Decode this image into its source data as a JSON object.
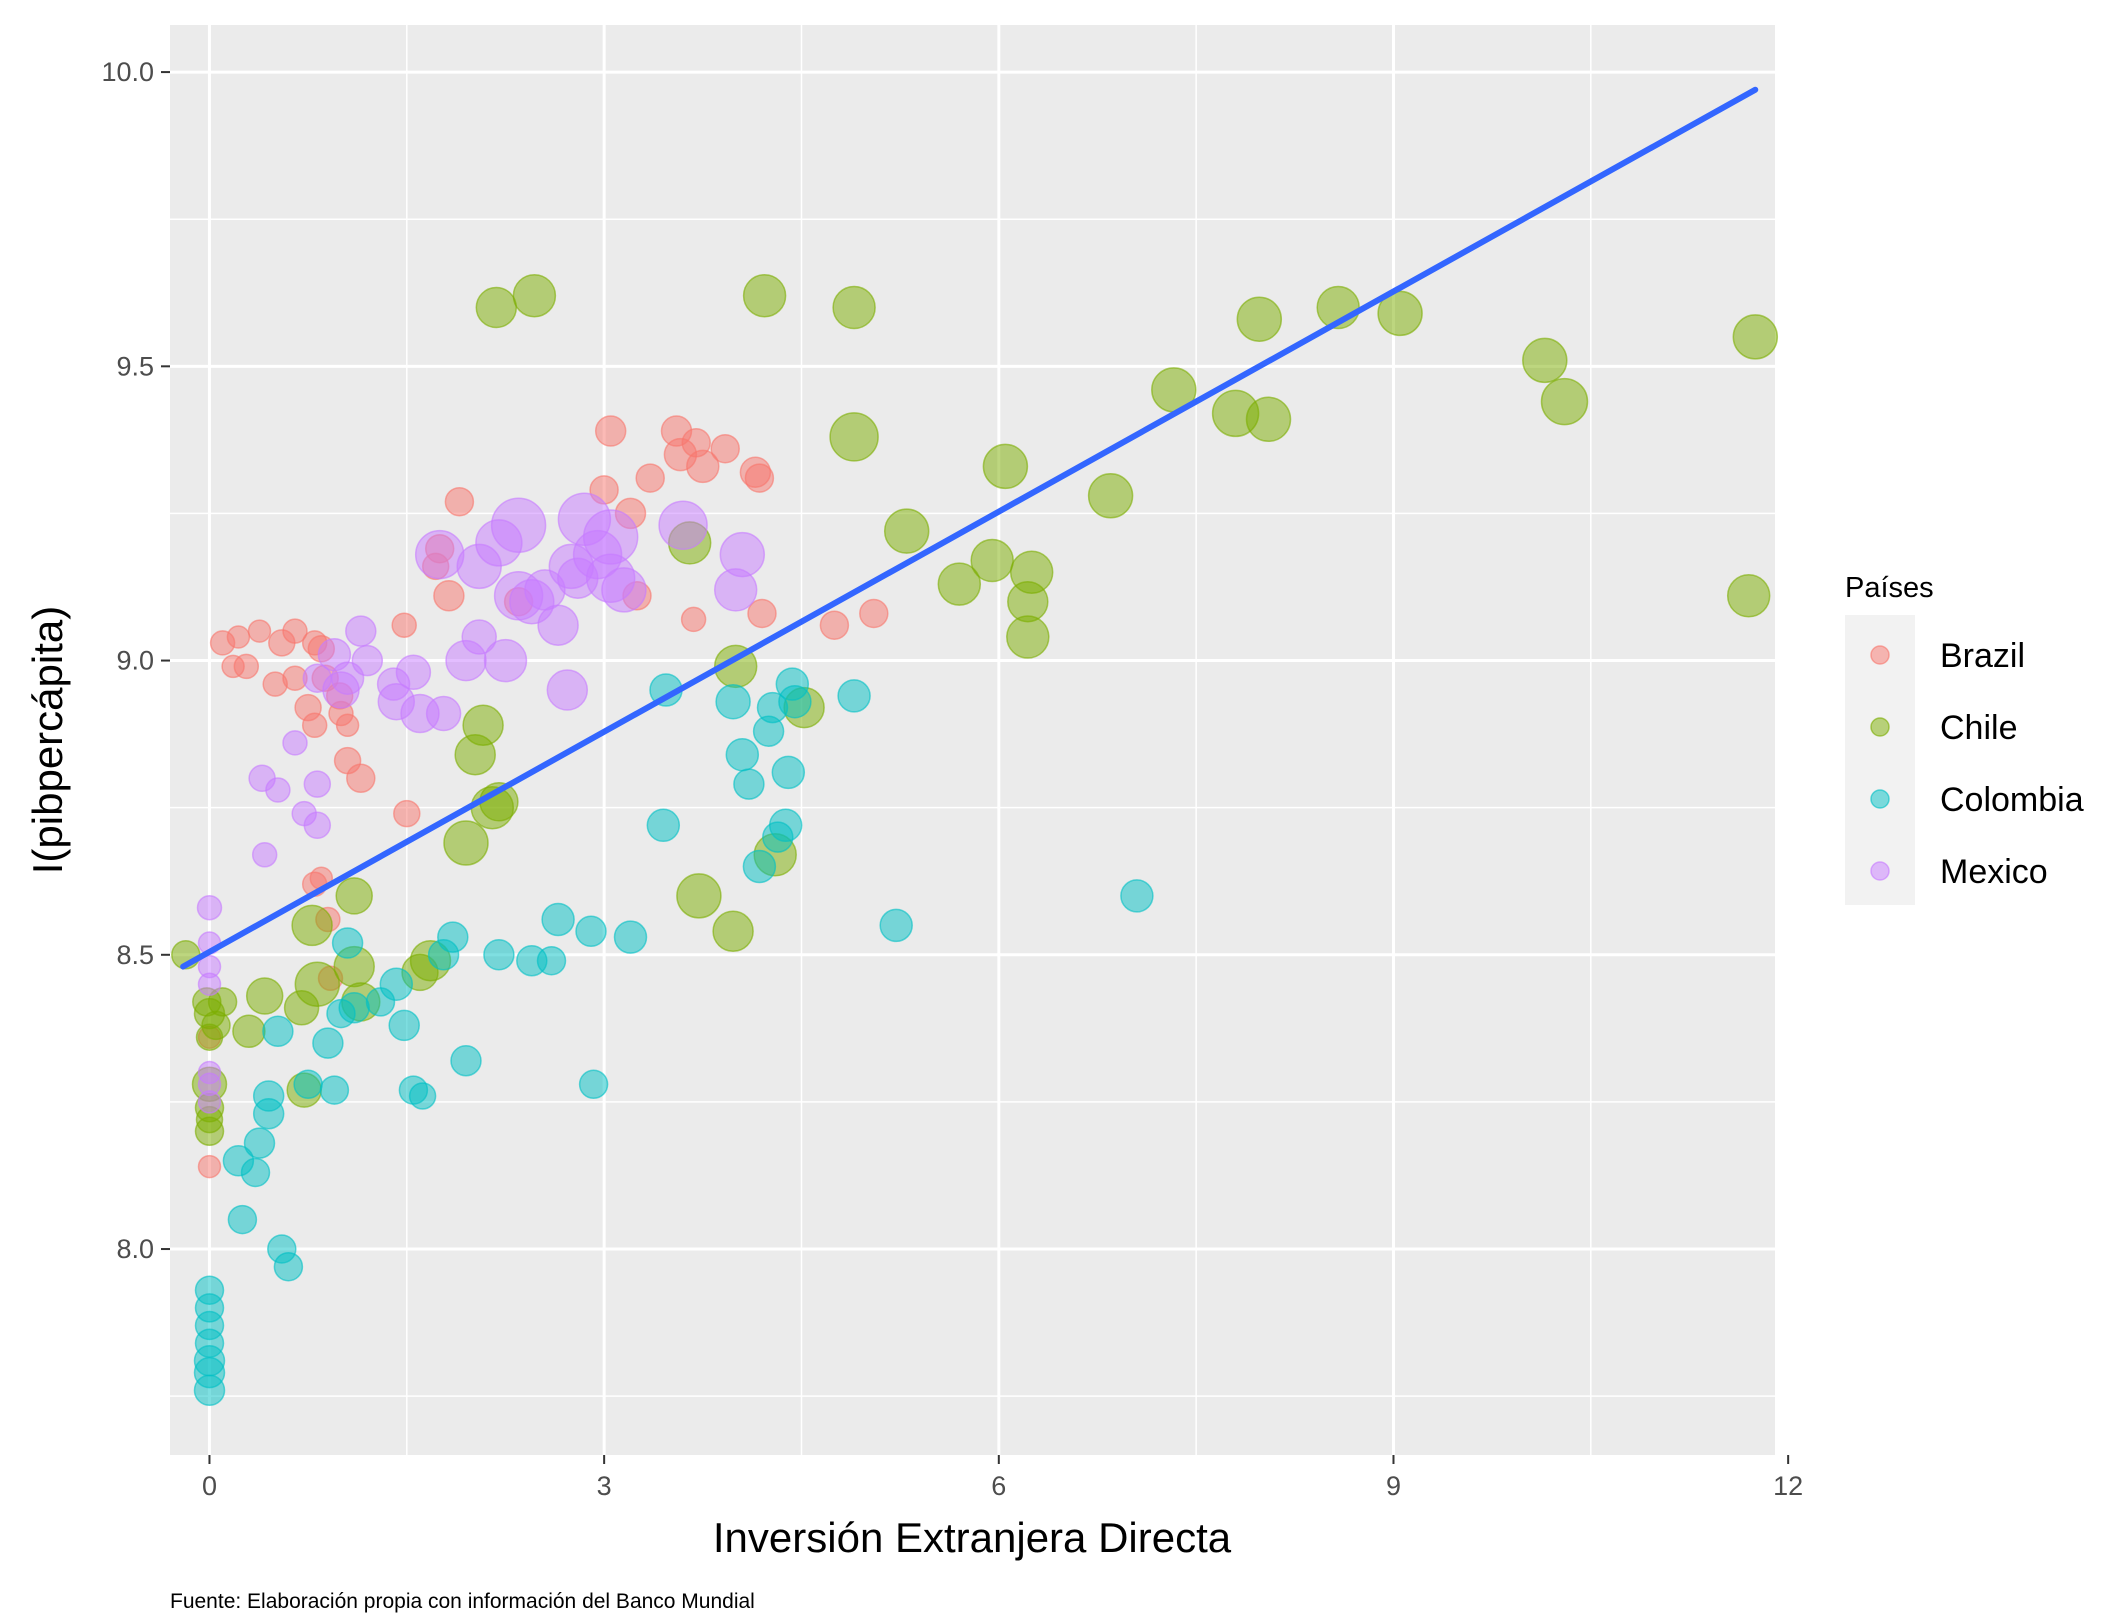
{
  "chart_data": {
    "type": "scatter",
    "xlabel": "Inversión Extranjera Directa",
    "ylabel": "I(pibpercápita)",
    "caption": "Fuente: Elaboración propia con información del Banco Mundial",
    "xlim": [
      -0.3,
      11.9
    ],
    "ylim": [
      7.65,
      10.08
    ],
    "x_ticks": [
      0,
      3,
      6,
      9,
      12
    ],
    "x_tick_labels": [
      "0",
      "3",
      "6",
      "9",
      "12"
    ],
    "y_ticks": [
      8.0,
      8.5,
      9.0,
      9.5,
      10.0
    ],
    "y_tick_labels": [
      "8.0",
      "8.5",
      "9.0",
      "9.5",
      "10.0"
    ],
    "grid": true,
    "legend": {
      "title": "Países",
      "position": "right",
      "items": [
        {
          "label": "Brazil",
          "color": "#F8766D"
        },
        {
          "label": "Chile",
          "color": "#7CAE00"
        },
        {
          "label": "Colombia",
          "color": "#00BFC4"
        },
        {
          "label": "Mexico",
          "color": "#C77CFF"
        }
      ]
    },
    "trend_line": {
      "color": "#3366FF",
      "x": [
        -0.2,
        11.75
      ],
      "y": [
        8.48,
        9.97
      ]
    },
    "series": [
      {
        "name": "Brazil",
        "color": "#F8766D",
        "points": [
          [
            0.1,
            9.03,
            12
          ],
          [
            0.22,
            9.04,
            11
          ],
          [
            0.38,
            9.05,
            11
          ],
          [
            0.55,
            9.03,
            13
          ],
          [
            0.65,
            9.05,
            12
          ],
          [
            0.8,
            9.03,
            12
          ],
          [
            0.85,
            9.02,
            13
          ],
          [
            0.18,
            8.99,
            11
          ],
          [
            0.28,
            8.99,
            12
          ],
          [
            0.5,
            8.96,
            12
          ],
          [
            0.65,
            8.97,
            12
          ],
          [
            0.88,
            8.97,
            13
          ],
          [
            0.99,
            8.94,
            13
          ],
          [
            0.75,
            8.92,
            13
          ],
          [
            0.8,
            8.89,
            12
          ],
          [
            1.0,
            8.91,
            12
          ],
          [
            1.05,
            8.89,
            11
          ],
          [
            1.05,
            8.83,
            13
          ],
          [
            1.15,
            8.8,
            14
          ],
          [
            1.5,
            8.74,
            13
          ],
          [
            0.8,
            8.62,
            12
          ],
          [
            0.85,
            8.63,
            11
          ],
          [
            0.9,
            8.56,
            12
          ],
          [
            0.92,
            8.46,
            12
          ],
          [
            0.0,
            8.36,
            11
          ],
          [
            0.0,
            8.14,
            11
          ],
          [
            1.48,
            9.06,
            12
          ],
          [
            1.75,
            9.19,
            14
          ],
          [
            1.72,
            9.16,
            13
          ],
          [
            1.82,
            9.11,
            15
          ],
          [
            1.9,
            9.27,
            14
          ],
          [
            2.35,
            9.1,
            14
          ],
          [
            3.05,
            9.39,
            15
          ],
          [
            3.0,
            9.29,
            14
          ],
          [
            3.2,
            9.25,
            15
          ],
          [
            3.35,
            9.31,
            14
          ],
          [
            3.25,
            9.11,
            14
          ],
          [
            3.55,
            9.39,
            15
          ],
          [
            3.58,
            9.35,
            16
          ],
          [
            3.7,
            9.37,
            14
          ],
          [
            3.75,
            9.33,
            16
          ],
          [
            3.92,
            9.36,
            14
          ],
          [
            4.15,
            9.32,
            15
          ],
          [
            4.18,
            9.31,
            14
          ],
          [
            4.2,
            9.08,
            14
          ],
          [
            3.68,
            9.07,
            12
          ],
          [
            4.75,
            9.06,
            14
          ],
          [
            5.05,
            9.08,
            14
          ]
        ]
      },
      {
        "name": "Chile",
        "color": "#7CAE00",
        "points": [
          [
            -0.18,
            8.5,
            14
          ],
          [
            -0.02,
            8.42,
            14
          ],
          [
            0.0,
            8.4,
            15
          ],
          [
            0.05,
            8.38,
            14
          ],
          [
            0.0,
            8.36,
            13
          ],
          [
            0.1,
            8.42,
            14
          ],
          [
            0.3,
            8.37,
            16
          ],
          [
            0.0,
            8.28,
            17
          ],
          [
            0.0,
            8.24,
            14
          ],
          [
            0.0,
            8.2,
            14
          ],
          [
            0.0,
            8.22,
            13
          ],
          [
            0.42,
            8.43,
            18
          ],
          [
            0.7,
            8.41,
            17
          ],
          [
            0.72,
            8.27,
            17
          ],
          [
            0.78,
            8.55,
            20
          ],
          [
            0.82,
            8.45,
            22
          ],
          [
            1.1,
            8.6,
            18
          ],
          [
            1.1,
            8.48,
            20
          ],
          [
            1.15,
            8.42,
            19
          ],
          [
            1.6,
            8.47,
            18
          ],
          [
            1.68,
            8.49,
            20
          ],
          [
            1.95,
            8.69,
            22
          ],
          [
            2.02,
            8.84,
            20
          ],
          [
            2.08,
            8.89,
            20
          ],
          [
            2.15,
            8.75,
            21
          ],
          [
            2.2,
            8.76,
            19
          ],
          [
            2.18,
            9.6,
            20
          ],
          [
            2.47,
            9.62,
            21
          ],
          [
            3.65,
            9.2,
            21
          ],
          [
            3.72,
            8.6,
            22
          ],
          [
            3.98,
            8.54,
            20
          ],
          [
            4.0,
            8.99,
            21
          ],
          [
            4.3,
            8.67,
            21
          ],
          [
            4.52,
            8.92,
            20
          ],
          [
            4.22,
            9.62,
            21
          ],
          [
            4.9,
            9.6,
            21
          ],
          [
            4.9,
            9.38,
            24
          ],
          [
            5.3,
            9.22,
            22
          ],
          [
            5.7,
            9.13,
            21
          ],
          [
            5.95,
            9.17,
            21
          ],
          [
            6.05,
            9.33,
            22
          ],
          [
            6.22,
            9.1,
            20
          ],
          [
            6.25,
            9.15,
            21
          ],
          [
            6.22,
            9.04,
            21
          ],
          [
            6.85,
            9.28,
            22
          ],
          [
            7.33,
            9.46,
            22
          ],
          [
            7.8,
            9.42,
            23
          ],
          [
            8.05,
            9.41,
            22
          ],
          [
            7.98,
            9.58,
            22
          ],
          [
            8.58,
            9.6,
            21
          ],
          [
            9.05,
            9.59,
            22
          ],
          [
            10.15,
            9.51,
            22
          ],
          [
            10.3,
            9.44,
            23
          ],
          [
            11.7,
            9.11,
            21
          ],
          [
            11.75,
            9.55,
            22
          ]
        ]
      },
      {
        "name": "Colombia",
        "color": "#00BFC4",
        "points": [
          [
            0.0,
            7.93,
            14
          ],
          [
            0.0,
            7.9,
            14
          ],
          [
            0.0,
            7.87,
            14
          ],
          [
            0.0,
            7.84,
            14
          ],
          [
            0.0,
            7.81,
            15
          ],
          [
            0.0,
            7.79,
            15
          ],
          [
            0.0,
            7.76,
            15
          ],
          [
            0.22,
            8.15,
            15
          ],
          [
            0.25,
            8.05,
            14
          ],
          [
            0.35,
            8.13,
            14
          ],
          [
            0.38,
            8.18,
            15
          ],
          [
            0.45,
            8.26,
            15
          ],
          [
            0.45,
            8.23,
            15
          ],
          [
            0.52,
            8.37,
            15
          ],
          [
            0.55,
            8.0,
            14
          ],
          [
            0.6,
            7.97,
            14
          ],
          [
            0.75,
            8.28,
            14
          ],
          [
            0.9,
            8.35,
            15
          ],
          [
            0.95,
            8.27,
            14
          ],
          [
            1.0,
            8.4,
            14
          ],
          [
            1.05,
            8.52,
            15
          ],
          [
            1.1,
            8.41,
            15
          ],
          [
            1.3,
            8.42,
            14
          ],
          [
            1.42,
            8.45,
            16
          ],
          [
            1.48,
            8.38,
            15
          ],
          [
            1.55,
            8.27,
            14
          ],
          [
            1.62,
            8.26,
            13
          ],
          [
            1.78,
            8.5,
            15
          ],
          [
            1.85,
            8.53,
            15
          ],
          [
            1.95,
            8.32,
            15
          ],
          [
            2.2,
            8.5,
            15
          ],
          [
            2.45,
            8.49,
            15
          ],
          [
            2.6,
            8.49,
            14
          ],
          [
            2.65,
            8.56,
            16
          ],
          [
            2.9,
            8.54,
            15
          ],
          [
            2.92,
            8.28,
            14
          ],
          [
            3.2,
            8.53,
            16
          ],
          [
            3.45,
            8.72,
            16
          ],
          [
            3.47,
            8.95,
            16
          ],
          [
            3.98,
            8.93,
            17
          ],
          [
            4.05,
            8.84,
            16
          ],
          [
            4.1,
            8.79,
            15
          ],
          [
            4.18,
            8.65,
            16
          ],
          [
            4.25,
            8.88,
            15
          ],
          [
            4.32,
            8.7,
            15
          ],
          [
            4.38,
            8.72,
            16
          ],
          [
            4.4,
            8.81,
            16
          ],
          [
            4.43,
            8.96,
            16
          ],
          [
            4.45,
            8.93,
            16
          ],
          [
            4.28,
            8.92,
            15
          ],
          [
            4.9,
            8.94,
            16
          ],
          [
            5.22,
            8.55,
            16
          ],
          [
            7.05,
            8.6,
            16
          ]
        ]
      },
      {
        "name": "Mexico",
        "color": "#C77CFF",
        "points": [
          [
            0.0,
            8.58,
            12
          ],
          [
            0.0,
            8.52,
            11
          ],
          [
            0.0,
            8.48,
            11
          ],
          [
            0.0,
            8.45,
            11
          ],
          [
            0.0,
            8.3,
            11
          ],
          [
            0.0,
            8.28,
            11
          ],
          [
            0.0,
            8.25,
            11
          ],
          [
            0.4,
            8.8,
            13
          ],
          [
            0.42,
            8.67,
            12
          ],
          [
            0.52,
            8.78,
            12
          ],
          [
            0.65,
            8.86,
            12
          ],
          [
            0.72,
            8.74,
            12
          ],
          [
            0.82,
            8.79,
            13
          ],
          [
            0.82,
            8.72,
            13
          ],
          [
            0.82,
            8.97,
            14
          ],
          [
            0.95,
            9.01,
            16
          ],
          [
            1.0,
            8.95,
            18
          ],
          [
            1.05,
            8.97,
            16
          ],
          [
            1.15,
            9.05,
            15
          ],
          [
            1.2,
            9.0,
            15
          ],
          [
            1.4,
            8.96,
            16
          ],
          [
            1.42,
            8.93,
            18
          ],
          [
            1.55,
            8.98,
            17
          ],
          [
            1.6,
            8.91,
            19
          ],
          [
            1.78,
            8.91,
            17
          ],
          [
            1.75,
            9.18,
            24
          ],
          [
            1.95,
            9.0,
            20
          ],
          [
            2.05,
            9.16,
            22
          ],
          [
            2.05,
            9.04,
            17
          ],
          [
            2.2,
            9.2,
            23
          ],
          [
            2.25,
            9.0,
            21
          ],
          [
            2.35,
            9.23,
            27
          ],
          [
            2.35,
            9.11,
            24
          ],
          [
            2.45,
            9.1,
            22
          ],
          [
            2.55,
            9.12,
            20
          ],
          [
            2.65,
            9.06,
            20
          ],
          [
            2.72,
            8.95,
            20
          ],
          [
            2.75,
            9.16,
            22
          ],
          [
            2.8,
            9.14,
            20
          ],
          [
            2.85,
            9.24,
            26
          ],
          [
            2.95,
            9.18,
            24
          ],
          [
            3.05,
            9.21,
            27
          ],
          [
            3.05,
            9.14,
            24
          ],
          [
            3.15,
            9.12,
            22
          ],
          [
            3.6,
            9.23,
            24
          ],
          [
            4.0,
            9.12,
            21
          ],
          [
            4.05,
            9.18,
            22
          ]
        ]
      }
    ]
  }
}
